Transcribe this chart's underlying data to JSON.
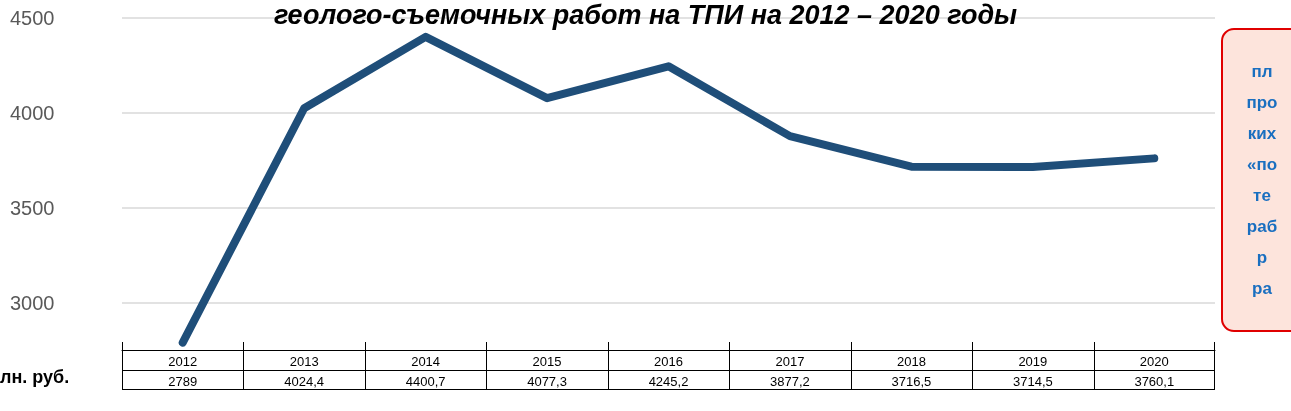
{
  "chart_data": {
    "type": "line",
    "title": "геолого-съемочных работ на ТПИ на 2012 – 2020 годы",
    "ylabel": "лн. руб.",
    "categories": [
      "2012",
      "2013",
      "2014",
      "2015",
      "2016",
      "2017",
      "2018",
      "2019",
      "2020"
    ],
    "series": [
      {
        "color": "#1f4e79",
        "values": [
          2789,
          4024.4,
          4400.7,
          4077.3,
          4245.2,
          3877.2,
          3716.5,
          3714.5,
          3760.1
        ],
        "value_labels": [
          "2789",
          "4024,4",
          "4400,7",
          "4077,3",
          "4245,2",
          "3877,2",
          "3716,5",
          "3714,5",
          "3760,1"
        ]
      }
    ],
    "ylim": [
      2750,
      4500
    ],
    "yticks": [
      3000,
      3500,
      4000,
      4500
    ],
    "grid": "y",
    "line_style": "solid",
    "annotations": [
      "пл\nпро\nких\n«по\nте\nраб\nр\nра"
    ]
  }
}
